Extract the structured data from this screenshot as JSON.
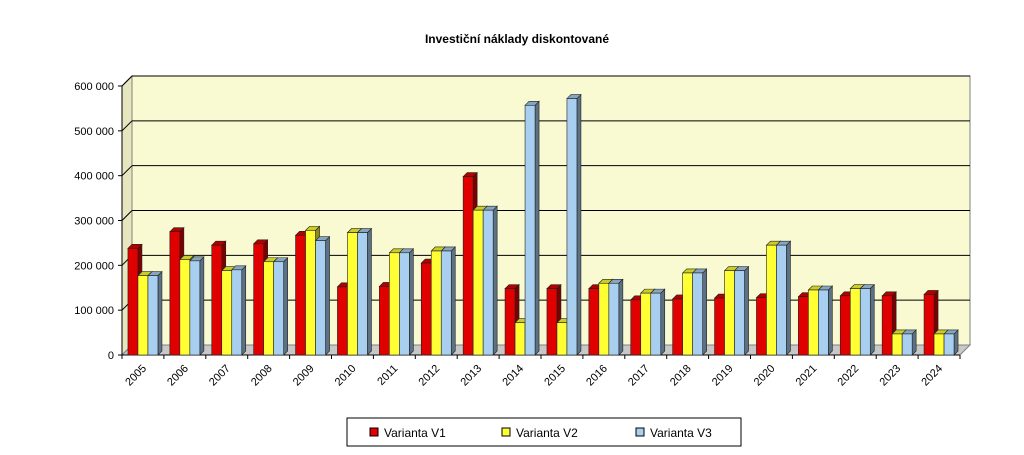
{
  "chart_data": {
    "type": "bar",
    "title": "Investiční náklady diskontované",
    "xlabel": "",
    "ylabel": "",
    "ylim": [
      0,
      600000
    ],
    "yticks": [
      "0",
      "100 000",
      "200 000",
      "300 000",
      "400 000",
      "500 000",
      "600 000"
    ],
    "ytick_values": [
      0,
      100000,
      200000,
      300000,
      400000,
      500000,
      600000
    ],
    "grid": true,
    "legend_position": "bottom",
    "categories": [
      "2005",
      "2006",
      "2007",
      "2008",
      "2009",
      "2010",
      "2011",
      "2012",
      "2013",
      "2014",
      "2015",
      "2016",
      "2017",
      "2018",
      "2019",
      "2020",
      "2021",
      "2022",
      "2023",
      "2024"
    ],
    "series": [
      {
        "name": "Varianta V1",
        "color": "#e00000",
        "values": [
          238000,
          275000,
          245000,
          248000,
          267000,
          152000,
          153000,
          205000,
          398000,
          148000,
          148000,
          148000,
          123000,
          125000,
          127000,
          128000,
          130000,
          132000,
          132000,
          135000
        ]
      },
      {
        "name": "Varianta V2",
        "color": "#ffff33",
        "values": [
          177000,
          213000,
          188000,
          208000,
          278000,
          273000,
          228000,
          232000,
          323000,
          72000,
          72000,
          160000,
          138000,
          183000,
          188000,
          245000,
          145000,
          148000,
          47000,
          47000
        ]
      },
      {
        "name": "Varianta V3",
        "color": "#a8cff0",
        "values": [
          177000,
          210000,
          190000,
          208000,
          255000,
          273000,
          228000,
          232000,
          323000,
          557000,
          572000,
          160000,
          138000,
          183000,
          188000,
          245000,
          145000,
          148000,
          47000,
          47000
        ]
      }
    ],
    "plot_background": "#fafad2"
  }
}
